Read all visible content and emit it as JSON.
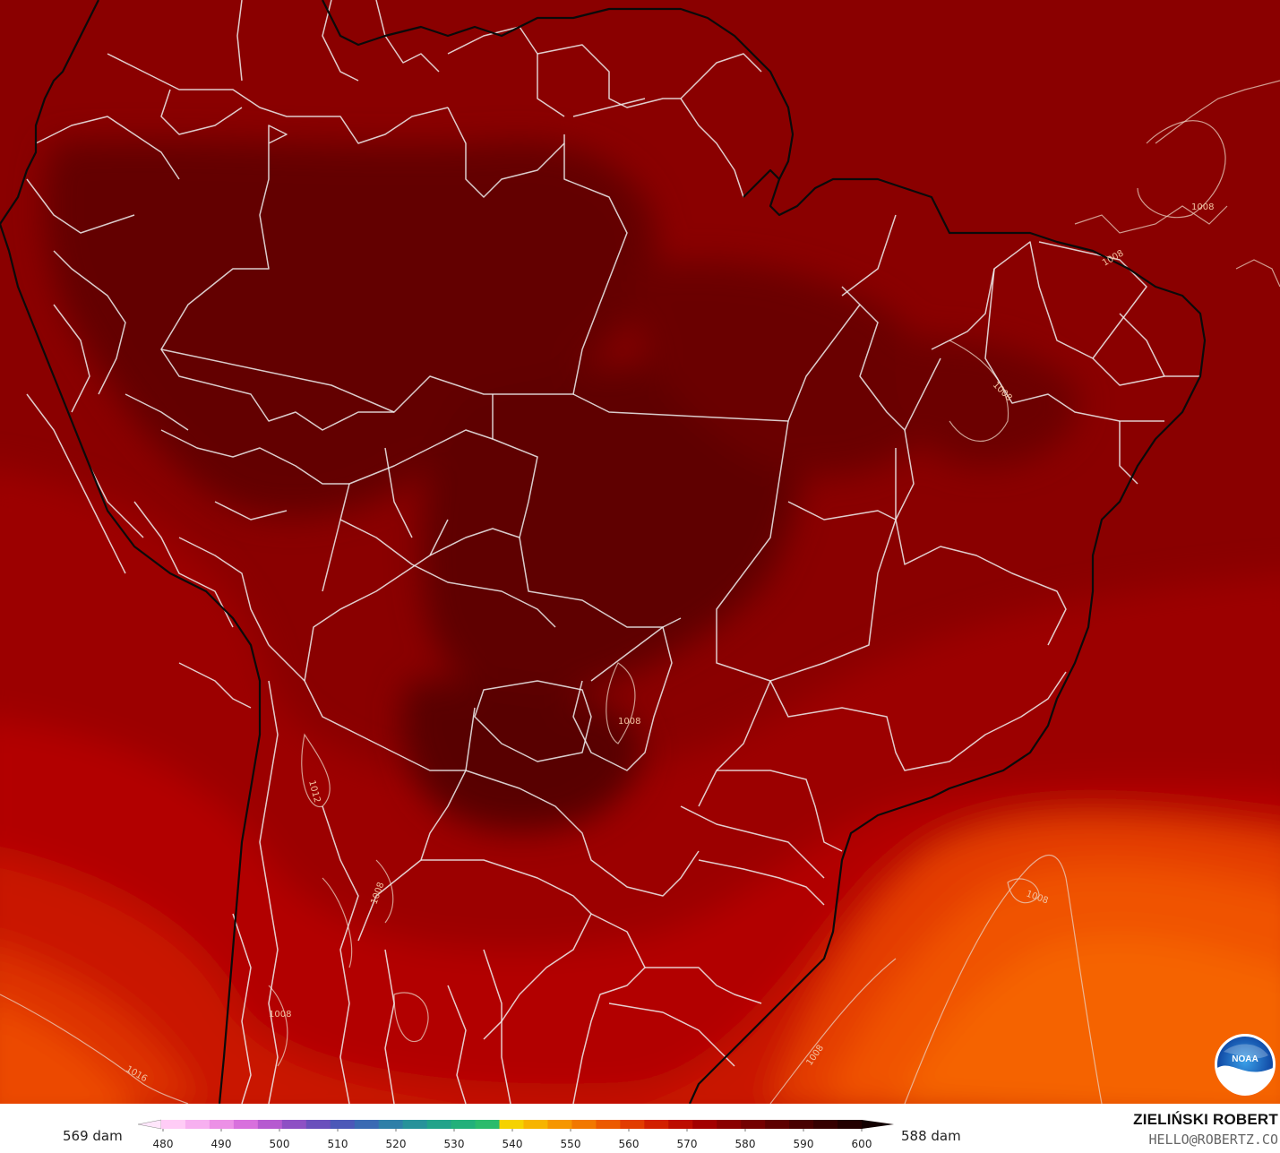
{
  "map": {
    "contour_labels": [
      "1008",
      "1008",
      "1008",
      "1008",
      "1008",
      "1008",
      "1012",
      "1016",
      "1008"
    ]
  },
  "colorbar": {
    "min_label": "569 dam",
    "max_label": "588 dam",
    "ticks": [
      "480",
      "490",
      "500",
      "510",
      "520",
      "530",
      "540",
      "550",
      "560",
      "570",
      "580",
      "590",
      "600"
    ],
    "colors": [
      "#ffe6fb",
      "#ffccf6",
      "#f7b0f0",
      "#ec90e6",
      "#d870dd",
      "#b65ad0",
      "#8e50c4",
      "#6a4fbc",
      "#4c58b8",
      "#3a6ab3",
      "#2e7fa8",
      "#27929a",
      "#21a38a",
      "#22b07a",
      "#2bbb6c",
      "#f5d200",
      "#f7b400",
      "#f69600",
      "#f27800",
      "#ec5a00",
      "#e23c00",
      "#d21f00",
      "#bd0c00",
      "#a30000",
      "#8a0000",
      "#740000",
      "#5d0000",
      "#480000",
      "#350000",
      "#220000",
      "#120000"
    ]
  },
  "credit": {
    "name": "ZIELIŃSKI ROBERT",
    "email": "HELLO@ROBERTZ.CO"
  },
  "logo": {
    "text": "NOAA"
  }
}
